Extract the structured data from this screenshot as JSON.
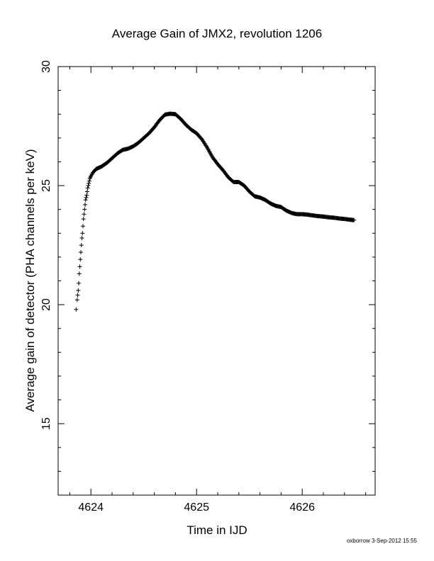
{
  "chart_data": {
    "type": "scatter",
    "title": "Average Gain of JMX2, revolution 1206",
    "xlabel": "Time in IJD",
    "ylabel": "Average gain of detector (PHA channels per keV)",
    "xlim": [
      4623.69,
      4626.69
    ],
    "ylim": [
      12,
      30
    ],
    "xticks": [
      4624,
      4625,
      4626
    ],
    "xtick_labels": [
      "4624",
      "4625",
      "4626"
    ],
    "yticks": [
      15,
      20,
      25,
      30
    ],
    "ytick_labels": [
      "15",
      "20",
      "25",
      "30"
    ],
    "marker": "plus",
    "grid": false,
    "series": [
      {
        "values": [
          [
            4623.86,
            19.8
          ],
          [
            4623.87,
            20.2
          ],
          [
            4623.875,
            20.4
          ],
          [
            4623.88,
            20.6
          ],
          [
            4623.885,
            20.9
          ],
          [
            4623.89,
            21.3
          ],
          [
            4623.895,
            21.6
          ],
          [
            4623.9,
            21.9
          ],
          [
            4623.905,
            22.2
          ],
          [
            4623.91,
            22.5
          ],
          [
            4623.915,
            22.8
          ],
          [
            4623.92,
            23.0
          ],
          [
            4623.925,
            23.3
          ],
          [
            4623.93,
            23.6
          ],
          [
            4623.935,
            23.8
          ],
          [
            4623.94,
            24.0
          ],
          [
            4623.945,
            24.2
          ],
          [
            4623.95,
            24.4
          ],
          [
            4623.96,
            24.6
          ],
          [
            4623.97,
            24.9
          ],
          [
            4623.98,
            25.1
          ],
          [
            4623.99,
            25.3
          ],
          [
            4624.0,
            25.4
          ],
          [
            4624.02,
            25.55
          ],
          [
            4624.05,
            25.7
          ],
          [
            4624.1,
            25.8
          ],
          [
            4624.15,
            25.95
          ],
          [
            4624.2,
            26.15
          ],
          [
            4624.25,
            26.35
          ],
          [
            4624.3,
            26.5
          ],
          [
            4624.35,
            26.55
          ],
          [
            4624.4,
            26.65
          ],
          [
            4624.45,
            26.8
          ],
          [
            4624.5,
            27.0
          ],
          [
            4624.55,
            27.2
          ],
          [
            4624.6,
            27.45
          ],
          [
            4624.65,
            27.75
          ],
          [
            4624.7,
            27.98
          ],
          [
            4624.75,
            28.02
          ],
          [
            4624.8,
            28.0
          ],
          [
            4624.85,
            27.8
          ],
          [
            4624.9,
            27.55
          ],
          [
            4624.95,
            27.35
          ],
          [
            4625.0,
            27.2
          ],
          [
            4625.05,
            26.95
          ],
          [
            4625.1,
            26.6
          ],
          [
            4625.15,
            26.2
          ],
          [
            4625.2,
            25.9
          ],
          [
            4625.25,
            25.65
          ],
          [
            4625.3,
            25.35
          ],
          [
            4625.35,
            25.15
          ],
          [
            4625.4,
            25.15
          ],
          [
            4625.45,
            25.0
          ],
          [
            4625.5,
            24.75
          ],
          [
            4625.55,
            24.55
          ],
          [
            4625.6,
            24.5
          ],
          [
            4625.65,
            24.4
          ],
          [
            4625.7,
            24.25
          ],
          [
            4625.75,
            24.15
          ],
          [
            4625.8,
            24.1
          ],
          [
            4625.85,
            23.95
          ],
          [
            4625.9,
            23.85
          ],
          [
            4625.95,
            23.8
          ],
          [
            4626.0,
            23.8
          ],
          [
            4626.05,
            23.78
          ],
          [
            4626.1,
            23.75
          ],
          [
            4626.15,
            23.72
          ],
          [
            4626.2,
            23.7
          ],
          [
            4626.25,
            23.67
          ],
          [
            4626.3,
            23.65
          ],
          [
            4626.35,
            23.62
          ],
          [
            4626.4,
            23.6
          ],
          [
            4626.45,
            23.57
          ],
          [
            4626.49,
            23.55
          ]
        ]
      }
    ]
  },
  "footer": {
    "text": "oxborrow  3-Sep-2012 15:55"
  }
}
